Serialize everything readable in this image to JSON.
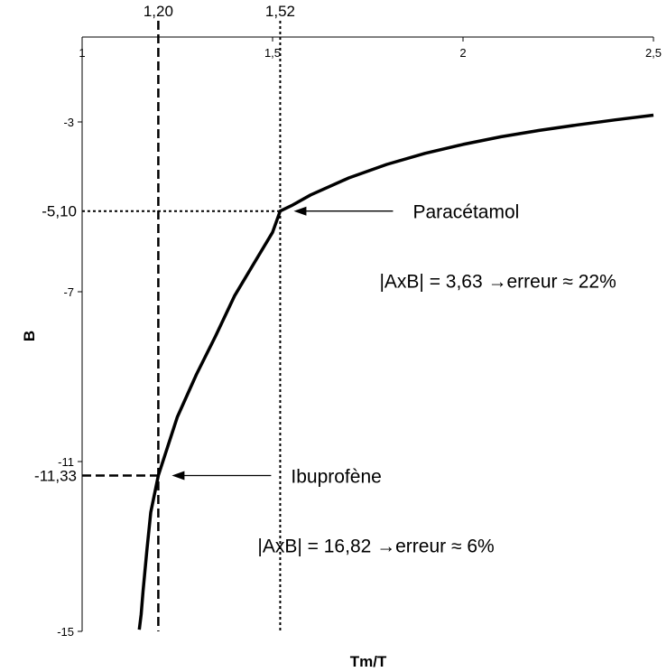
{
  "chart_data": {
    "type": "line",
    "xlabel": "Tm/T",
    "ylabel": "B",
    "xlim": [
      1,
      2.5
    ],
    "ylim": [
      -15,
      -1
    ],
    "x_ticks": [
      {
        "value": 1,
        "label": "1"
      },
      {
        "value": 1.5,
        "label": "1,5"
      },
      {
        "value": 2,
        "label": "2"
      },
      {
        "value": 2.5,
        "label": "2,5"
      }
    ],
    "y_ticks": [
      {
        "value": -3,
        "label": "-3"
      },
      {
        "value": -7,
        "label": "-7"
      },
      {
        "value": -11,
        "label": "-11"
      },
      {
        "value": -15,
        "label": "-15"
      }
    ],
    "series": [
      {
        "x": [
          1.15,
          1.155,
          1.16,
          1.17,
          1.18,
          1.2,
          1.25,
          1.3,
          1.35,
          1.4,
          1.45,
          1.5,
          1.52,
          1.55,
          1.6,
          1.7,
          1.8,
          1.9,
          2.0,
          2.1,
          2.2,
          2.3,
          2.4,
          2.5
        ],
        "y": [
          -14.96,
          -14.6,
          -14.05,
          -13.1,
          -12.2,
          -11.33,
          -9.95,
          -8.95,
          -8.05,
          -7.1,
          -6.35,
          -5.6,
          -5.1,
          -4.97,
          -4.72,
          -4.32,
          -4.0,
          -3.74,
          -3.53,
          -3.35,
          -3.2,
          -3.07,
          -2.95,
          -2.84
        ]
      }
    ],
    "reference_lines": [
      {
        "axis": "x",
        "value": 1.2,
        "label": "1,20",
        "style": "dashed"
      },
      {
        "axis": "x",
        "value": 1.52,
        "label": "1,52",
        "style": "dotted"
      },
      {
        "axis": "y",
        "value": -5.1,
        "label": "-5,10",
        "style": "dotted"
      },
      {
        "axis": "y",
        "value": -11.33,
        "label": "-11,33",
        "style": "dashed"
      }
    ],
    "annotations": [
      {
        "name": "paracetamol",
        "title": "Paracétamol",
        "formula": "|AxB| = 3,63 →erreur ≈ 22%",
        "point": [
          1.52,
          -5.1
        ]
      },
      {
        "name": "ibuprofene",
        "title": "Ibuprofène",
        "formula": "|AxB| = 16,82 →erreur ≈ 6%",
        "point": [
          1.2,
          -11.33
        ]
      }
    ],
    "grid": false,
    "legend": "none"
  }
}
